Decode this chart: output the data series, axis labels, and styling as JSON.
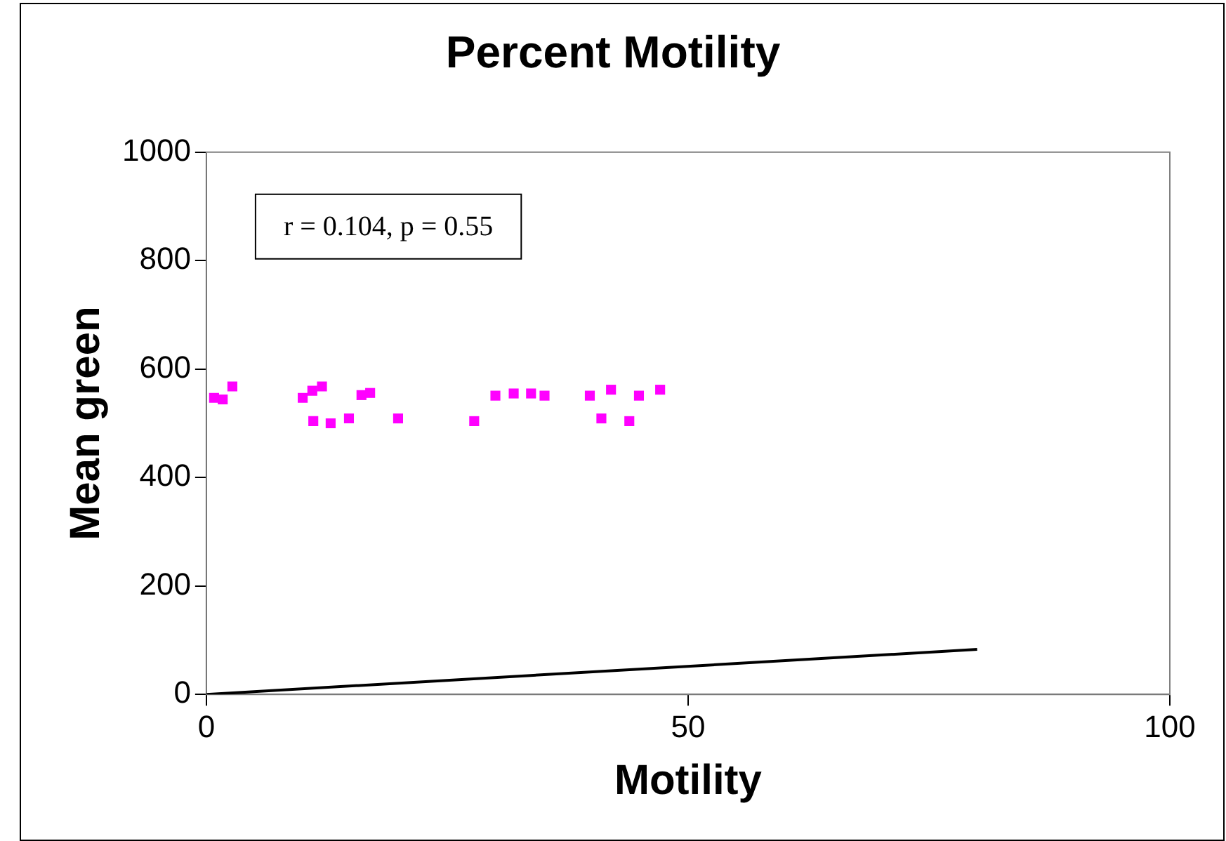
{
  "chart_data": {
    "type": "scatter",
    "title": "Percent Motility",
    "xlabel": "Motility",
    "ylabel": "Mean green",
    "xlim": [
      0,
      100
    ],
    "xticks": [
      0,
      50,
      100
    ],
    "ylim": [
      0,
      1000
    ],
    "yticks": [
      0,
      200,
      400,
      600,
      800,
      1000
    ],
    "grid": false,
    "legend": false,
    "marker": "square",
    "annotations": [
      "r = 0.104, p = 0.55"
    ],
    "series": [
      {
        "type": "scatter",
        "color": "#ff00ff",
        "x": [
          0.8,
          1.7,
          2.7,
          10.0,
          11.0,
          12.0,
          11.1,
          12.9,
          14.8,
          16.1,
          17.0,
          19.9,
          27.8,
          30.0,
          31.9,
          33.7,
          35.1,
          39.8,
          42.0,
          41.0,
          43.9,
          44.9,
          47.1
        ],
        "values": [
          547,
          544,
          568,
          547,
          560,
          568,
          504,
          500,
          509,
          552,
          556,
          509,
          504,
          551,
          555,
          555,
          551,
          551,
          562,
          509,
          504,
          551,
          562
        ]
      },
      {
        "type": "line",
        "color": "#000000",
        "marker": "none",
        "x": [
          0,
          80
        ],
        "values": [
          0,
          83
        ]
      }
    ]
  }
}
